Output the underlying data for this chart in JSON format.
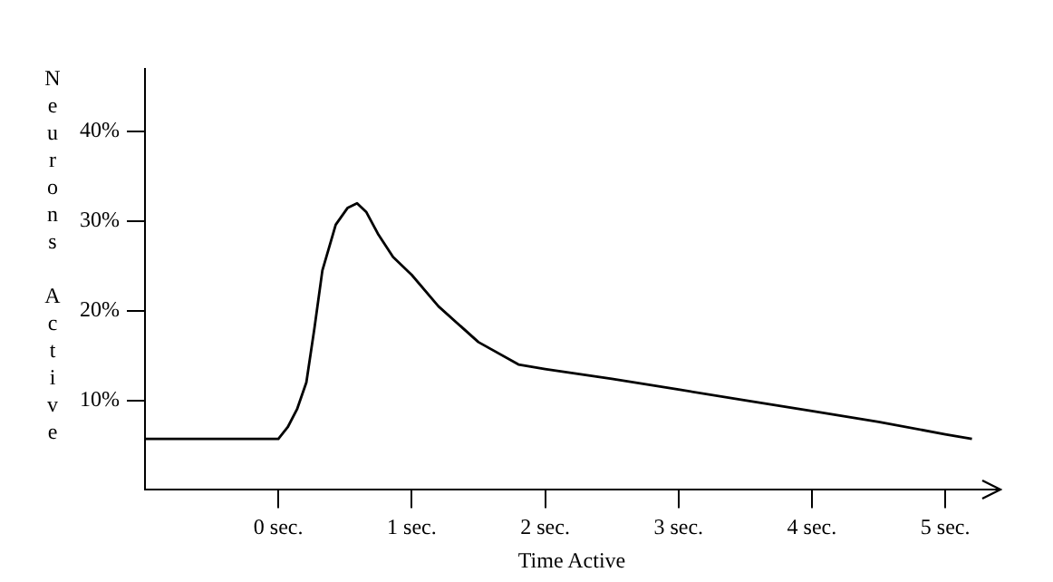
{
  "chart_data": {
    "type": "line",
    "xlabel": "Time Active",
    "ylabel": "Neurons Active",
    "x": [
      -1,
      0,
      0.07,
      0.14,
      0.21,
      0.27,
      0.33,
      0.43,
      0.52,
      0.59,
      0.66,
      0.75,
      0.86,
      1.0,
      1.2,
      1.5,
      1.8,
      2.0,
      2.5,
      3.0,
      3.5,
      4.0,
      4.5,
      5.0,
      5.2
    ],
    "values": [
      5.7,
      5.7,
      7,
      9,
      12,
      18,
      24.5,
      29.6,
      31.5,
      32,
      31,
      28.5,
      26,
      24,
      20.5,
      16.5,
      14,
      13.5,
      12.4,
      11.2,
      10,
      8.8,
      7.6,
      6.2,
      5.7
    ],
    "color": "#000000",
    "xlim": [
      -1,
      5.4
    ],
    "ylim": [
      0,
      47
    ],
    "xticks": [
      {
        "value": 0,
        "label": "0 sec."
      },
      {
        "value": 1,
        "label": "1 sec."
      },
      {
        "value": 2,
        "label": "2 sec."
      },
      {
        "value": 3,
        "label": "3 sec."
      },
      {
        "value": 4,
        "label": "4 sec."
      },
      {
        "value": 5,
        "label": "5 sec."
      }
    ],
    "yticks": [
      {
        "value": 10,
        "label": "10%"
      },
      {
        "value": 20,
        "label": "20%"
      },
      {
        "value": 30,
        "label": "30%"
      },
      {
        "value": 40,
        "label": "40%"
      }
    ],
    "grid": false,
    "legend": false,
    "marker": "none",
    "line_style": "solid"
  }
}
